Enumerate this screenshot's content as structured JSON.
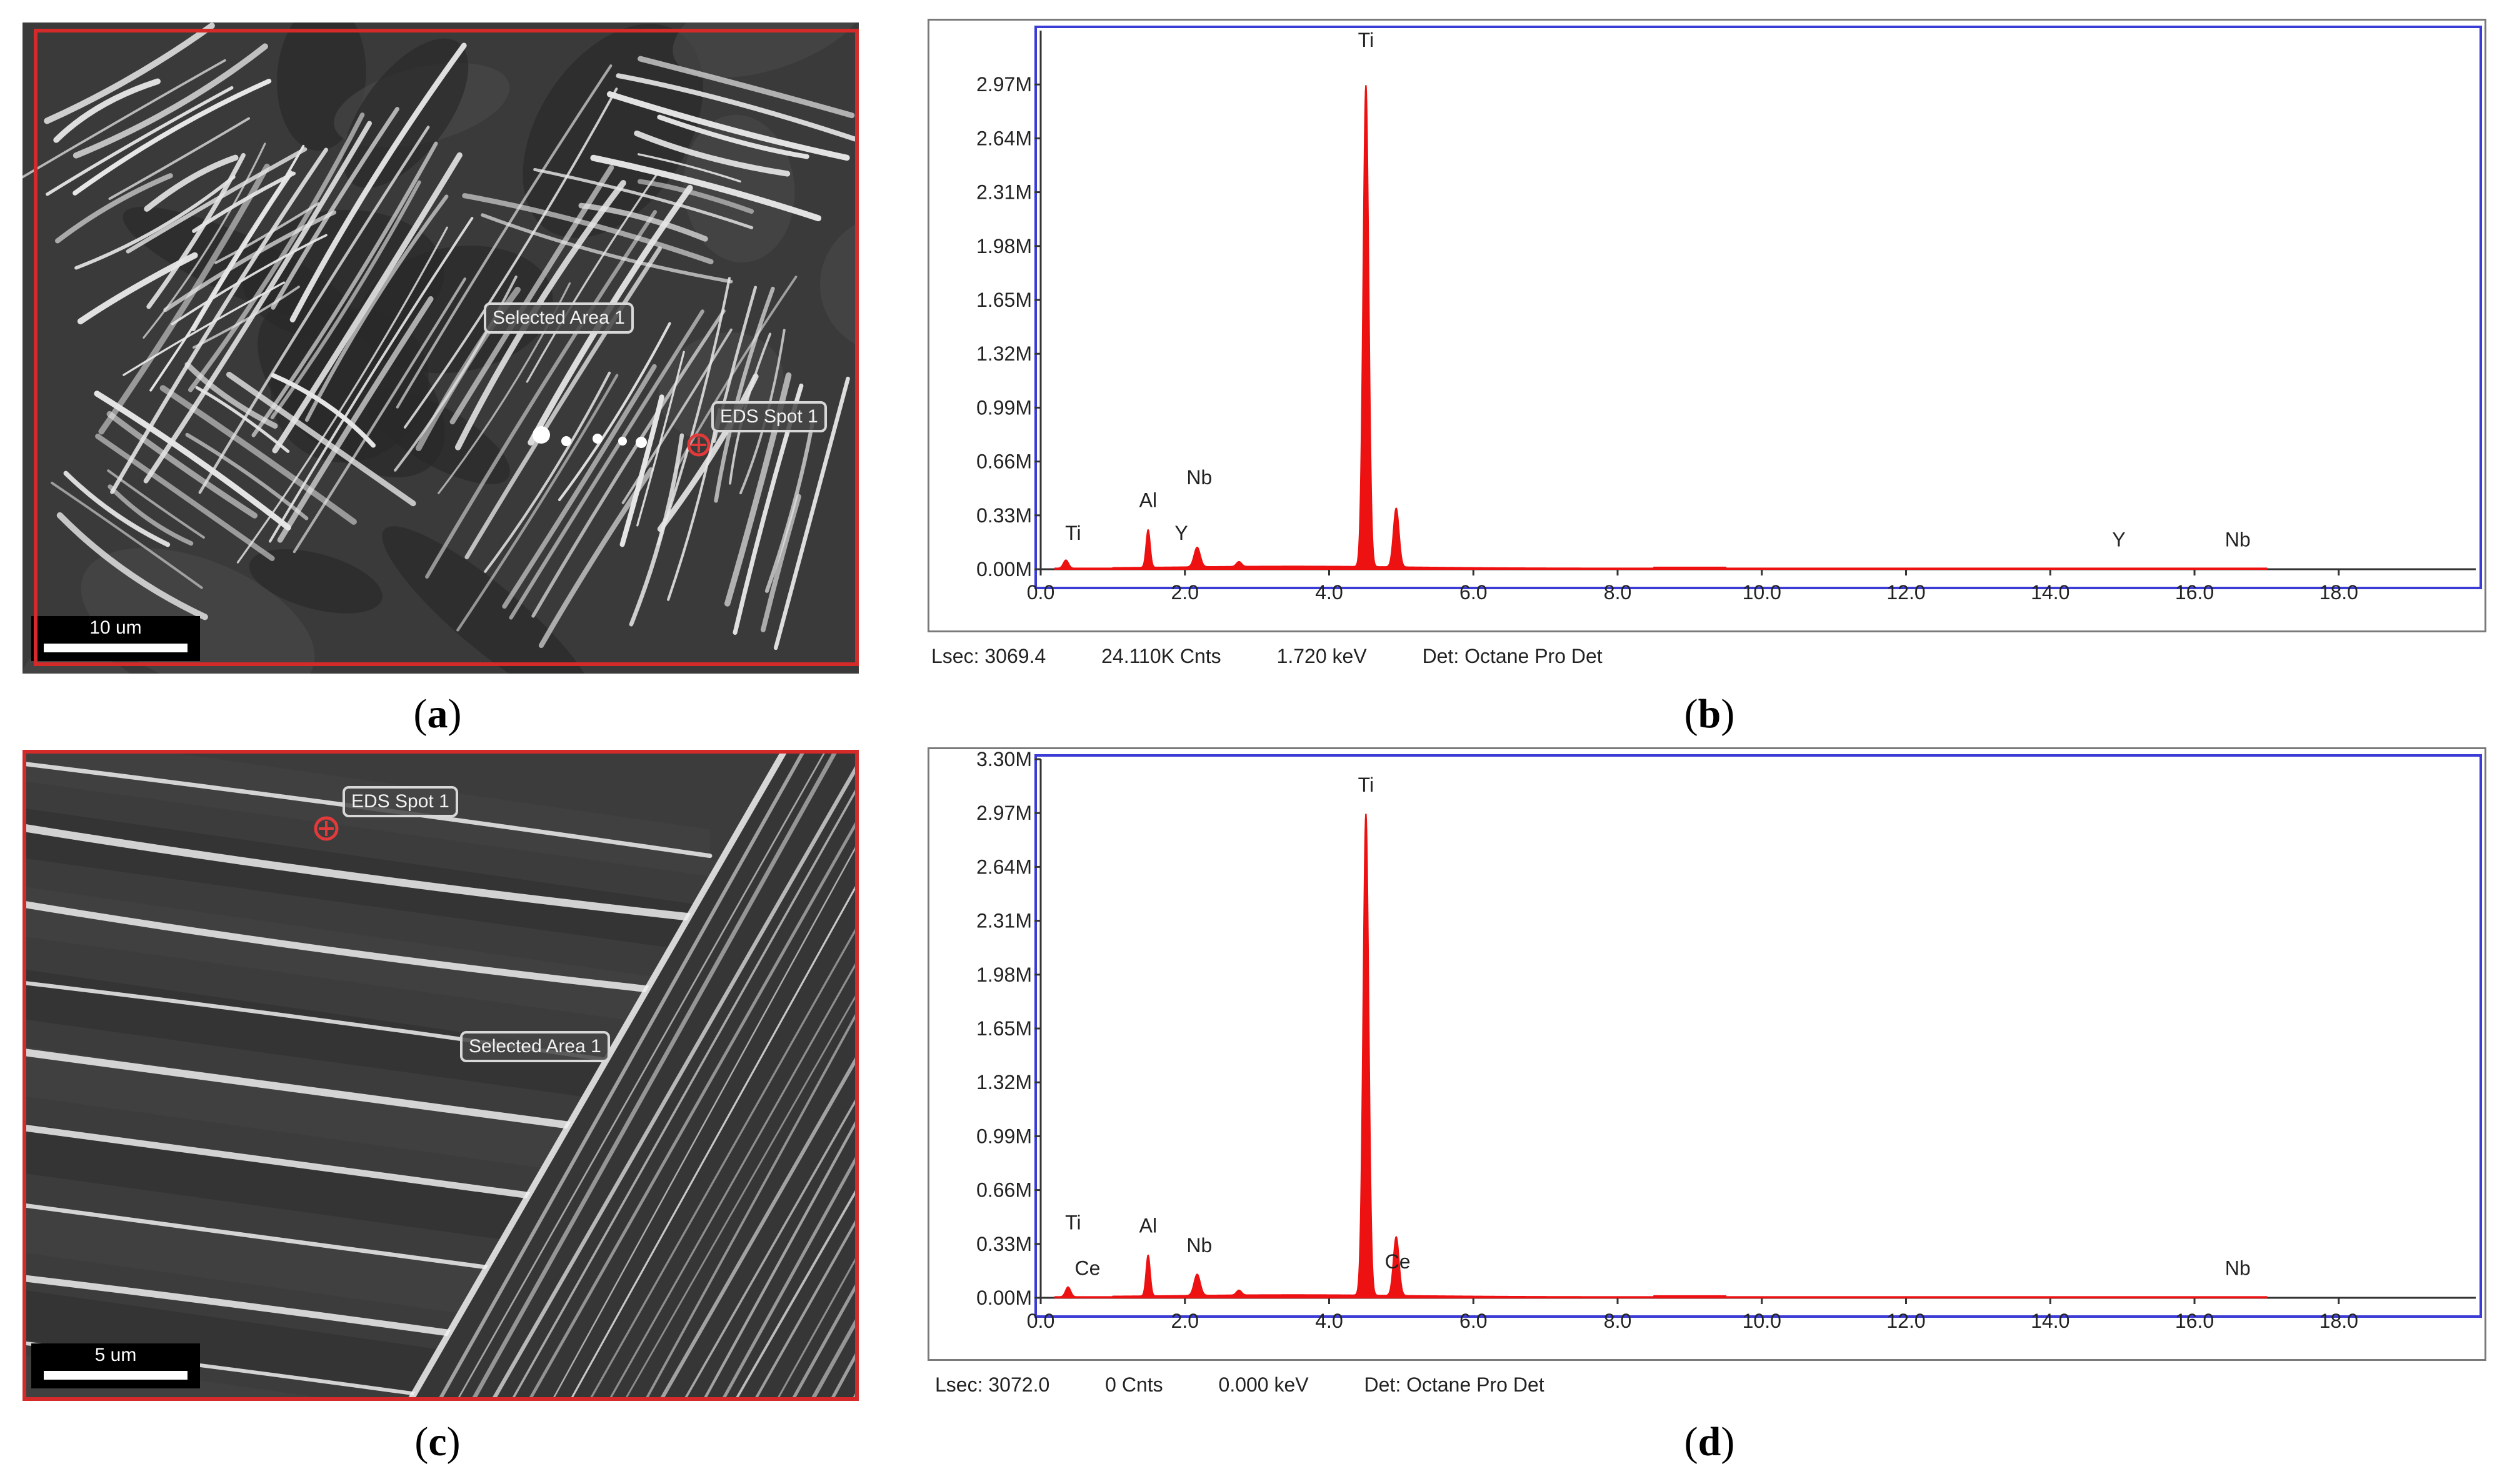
{
  "panels": {
    "a": {
      "caption": "a",
      "labels": {
        "area": "Selected Area 1",
        "spot": "EDS Spot 1"
      },
      "scale": "10 um"
    },
    "c": {
      "caption": "c",
      "labels": {
        "area": "Selected Area 1",
        "spot": "EDS Spot 1"
      },
      "scale": "5 um"
    },
    "b": {
      "caption": "b",
      "footer": {
        "lsec": "Lsec: 3069.4",
        "counts": "24.110K Cnts",
        "kev": "1.720 keV",
        "det": "Det: Octane Pro Det"
      }
    },
    "d": {
      "caption": "d",
      "footer": {
        "lsec": "Lsec: 3072.0",
        "counts": "0 Cnts",
        "kev": "0.000 keV",
        "det": "Det: Octane Pro Det"
      }
    }
  },
  "colors": {
    "spectrum": "#ee1111",
    "plot_border": "#3b3bd6",
    "sem_frame": "#d42a2a"
  },
  "chart_data": [
    {
      "id": "b",
      "type": "area",
      "xlim": [
        0,
        20
      ],
      "ylim": [
        0,
        3.3
      ],
      "xticks": [
        "0.0",
        "2.0",
        "4.0",
        "6.0",
        "8.0",
        "10.0",
        "12.0",
        "14.0",
        "16.0",
        "18.0"
      ],
      "yticks": [
        "0.00M",
        "0.33M",
        "0.66M",
        "0.99M",
        "1.32M",
        "1.65M",
        "1.98M",
        "2.31M",
        "2.64M",
        "2.97M"
      ],
      "peaks": [
        {
          "x": 0.35,
          "y": 0.05,
          "w": 0.05
        },
        {
          "x": 1.49,
          "y": 0.23,
          "w": 0.04
        },
        {
          "x": 2.17,
          "y": 0.12,
          "w": 0.06
        },
        {
          "x": 2.75,
          "y": 0.03,
          "w": 0.05
        },
        {
          "x": 4.51,
          "y": 2.95,
          "w": 0.055
        },
        {
          "x": 4.93,
          "y": 0.36,
          "w": 0.055
        }
      ],
      "element_labels": [
        {
          "text": "Ti",
          "x": 0.45,
          "y": 0.18
        },
        {
          "text": "Al",
          "x": 1.49,
          "y": 0.38
        },
        {
          "text": "Nb",
          "x": 2.2,
          "y": 0.52
        },
        {
          "text": "Y",
          "x": 1.95,
          "y": 0.18
        },
        {
          "text": "Ti",
          "x": 4.51,
          "y": 3.2
        },
        {
          "text": "Y",
          "x": 14.95,
          "y": 0.14
        },
        {
          "text": "Nb",
          "x": 16.6,
          "y": 0.14
        }
      ]
    },
    {
      "id": "d",
      "type": "area",
      "xlim": [
        0,
        20
      ],
      "ylim": [
        0,
        3.3
      ],
      "xticks": [
        "0.0",
        "2.0",
        "4.0",
        "6.0",
        "8.0",
        "10.0",
        "12.0",
        "14.0",
        "16.0",
        "18.0"
      ],
      "yticks": [
        "0.00M",
        "0.33M",
        "0.66M",
        "0.99M",
        "1.32M",
        "1.65M",
        "1.98M",
        "2.31M",
        "2.64M",
        "2.97M",
        "3.30M"
      ],
      "peaks": [
        {
          "x": 0.38,
          "y": 0.06,
          "w": 0.05
        },
        {
          "x": 1.49,
          "y": 0.25,
          "w": 0.04
        },
        {
          "x": 2.17,
          "y": 0.13,
          "w": 0.06
        },
        {
          "x": 2.75,
          "y": 0.03,
          "w": 0.05
        },
        {
          "x": 4.51,
          "y": 2.95,
          "w": 0.055
        },
        {
          "x": 4.93,
          "y": 0.36,
          "w": 0.055
        }
      ],
      "element_labels": [
        {
          "text": "Ti",
          "x": 0.45,
          "y": 0.42
        },
        {
          "text": "Ce",
          "x": 0.65,
          "y": 0.14
        },
        {
          "text": "Al",
          "x": 1.49,
          "y": 0.4
        },
        {
          "text": "Nb",
          "x": 2.2,
          "y": 0.28
        },
        {
          "text": "Ti",
          "x": 4.51,
          "y": 3.1
        },
        {
          "text": "Ce",
          "x": 4.95,
          "y": 0.18
        },
        {
          "text": "Nb",
          "x": 16.6,
          "y": 0.14
        }
      ]
    }
  ]
}
